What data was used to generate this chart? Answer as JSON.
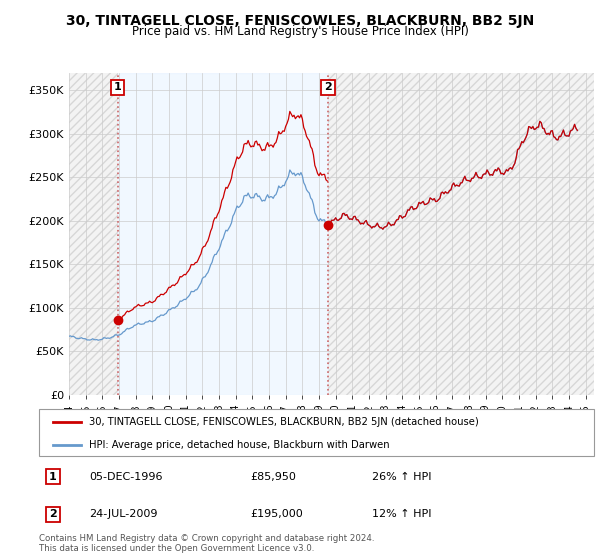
{
  "title": "30, TINTAGELL CLOSE, FENISCOWLES, BLACKBURN, BB2 5JN",
  "subtitle": "Price paid vs. HM Land Registry's House Price Index (HPI)",
  "legend_label_red": "30, TINTAGELL CLOSE, FENISCOWLES, BLACKBURN, BB2 5JN (detached house)",
  "legend_label_blue": "HPI: Average price, detached house, Blackburn with Darwen",
  "footer1": "Contains HM Land Registry data © Crown copyright and database right 2024.",
  "footer2": "This data is licensed under the Open Government Licence v3.0.",
  "annotation1_label": "1",
  "annotation1_date": "05-DEC-1996",
  "annotation1_price": "£85,950",
  "annotation1_hpi": "26% ↑ HPI",
  "annotation2_label": "2",
  "annotation2_date": "24-JUL-2009",
  "annotation2_price": "£195,000",
  "annotation2_hpi": "12% ↑ HPI",
  "ylim": [
    0,
    370000
  ],
  "yticks": [
    0,
    50000,
    100000,
    150000,
    200000,
    250000,
    300000,
    350000
  ],
  "color_red": "#cc0000",
  "color_blue": "#6699cc",
  "color_bg_blue": "#ddeeff",
  "color_bg_hatch": "#e0e0e0",
  "sale1_date": 1996.917,
  "sale1_value": 85950,
  "sale2_date": 2009.542,
  "sale2_value": 195000,
  "xmin": 1994.0,
  "xmax": 2025.5,
  "hpi_base_quarterly": {
    "dates": [
      1994.0,
      1994.25,
      1994.5,
      1994.75,
      1995.0,
      1995.25,
      1995.5,
      1995.75,
      1996.0,
      1996.25,
      1996.5,
      1996.75,
      1997.0,
      1997.25,
      1997.5,
      1997.75,
      1998.0,
      1998.25,
      1998.5,
      1998.75,
      1999.0,
      1999.25,
      1999.5,
      1999.75,
      2000.0,
      2000.25,
      2000.5,
      2000.75,
      2001.0,
      2001.25,
      2001.5,
      2001.75,
      2002.0,
      2002.25,
      2002.5,
      2002.75,
      2003.0,
      2003.25,
      2003.5,
      2003.75,
      2004.0,
      2004.25,
      2004.5,
      2004.75,
      2005.0,
      2005.25,
      2005.5,
      2005.75,
      2006.0,
      2006.25,
      2006.5,
      2006.75,
      2007.0,
      2007.25,
      2007.5,
      2007.75,
      2008.0,
      2008.25,
      2008.5,
      2008.75,
      2009.0,
      2009.25,
      2009.5,
      2009.75,
      2010.0,
      2010.25,
      2010.5,
      2010.75,
      2011.0,
      2011.25,
      2011.5,
      2011.75,
      2012.0,
      2012.25,
      2012.5,
      2012.75,
      2013.0,
      2013.25,
      2013.5,
      2013.75,
      2014.0,
      2014.25,
      2014.5,
      2014.75,
      2015.0,
      2015.25,
      2015.5,
      2015.75,
      2016.0,
      2016.25,
      2016.5,
      2016.75,
      2017.0,
      2017.25,
      2017.5,
      2017.75,
      2018.0,
      2018.25,
      2018.5,
      2018.75,
      2019.0,
      2019.25,
      2019.5,
      2019.75,
      2020.0,
      2020.25,
      2020.5,
      2020.75,
      2021.0,
      2021.25,
      2021.5,
      2021.75,
      2022.0,
      2022.25,
      2022.5,
      2022.75,
      2023.0,
      2023.25,
      2023.5,
      2023.75,
      2024.0,
      2024.25,
      2024.5
    ],
    "values": [
      67000,
      66500,
      65500,
      64500,
      64000,
      63500,
      63000,
      63500,
      64000,
      65000,
      66000,
      67500,
      69000,
      72000,
      75000,
      78000,
      80000,
      81500,
      82500,
      83500,
      85000,
      87500,
      90500,
      93500,
      96500,
      100000,
      103000,
      107000,
      111000,
      115000,
      119000,
      124000,
      131000,
      139000,
      149000,
      159000,
      169000,
      179500,
      189500,
      199500,
      211000,
      219000,
      226000,
      229000,
      229000,
      228000,
      226000,
      225000,
      226000,
      229000,
      233000,
      239000,
      246000,
      253000,
      256000,
      254000,
      249000,
      239000,
      226000,
      211000,
      201000,
      199000,
      197000,
      198000,
      201000,
      204000,
      206000,
      205000,
      203000,
      201000,
      199000,
      197000,
      195000,
      194000,
      193000,
      193000,
      193000,
      195000,
      198000,
      201000,
      205000,
      209000,
      213000,
      216000,
      218000,
      220000,
      222000,
      223000,
      224000,
      227000,
      231000,
      235000,
      238000,
      241000,
      244000,
      246000,
      248000,
      249000,
      251000,
      252000,
      253000,
      255000,
      256000,
      257000,
      257000,
      255000,
      259000,
      269000,
      281000,
      293000,
      301000,
      306000,
      309000,
      309000,
      306000,
      301000,
      298000,
      296000,
      297000,
      299000,
      301000,
      304000,
      307000
    ]
  }
}
